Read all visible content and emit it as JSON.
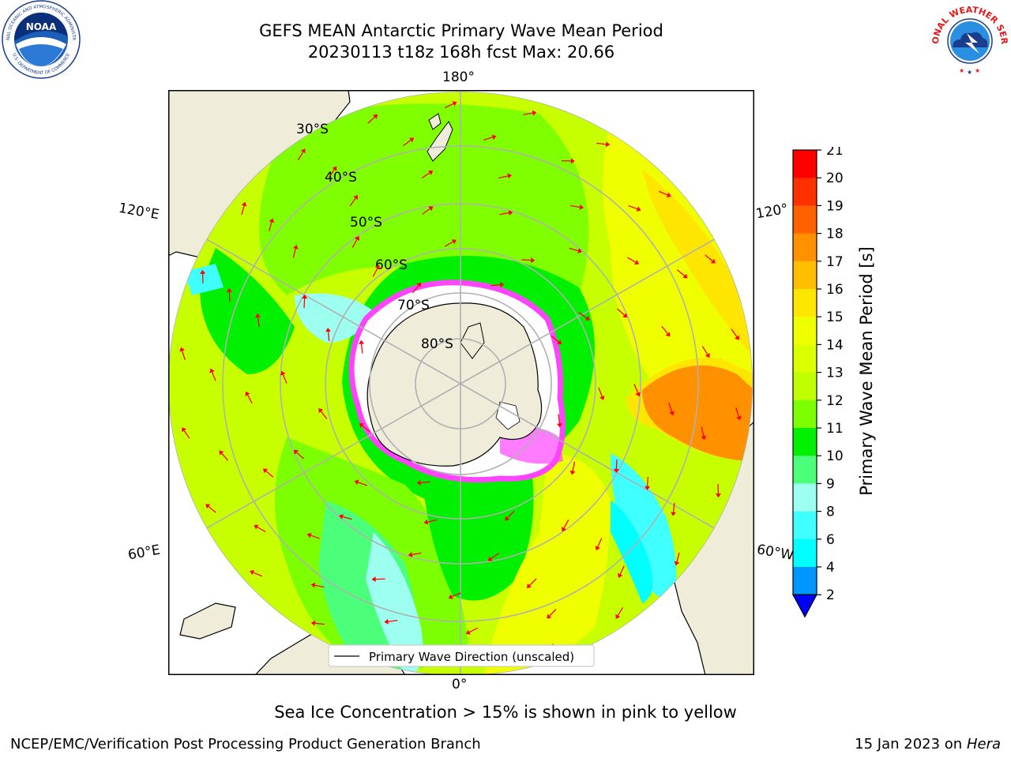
{
  "title": {
    "line1": "GEFS MEAN Antarctic Primary Wave Mean Period",
    "line2": "20230113 t18z 168h fcst   Max: 20.66"
  },
  "map": {
    "projection": "south-polar-stereographic",
    "lat_labels": [
      "30°S",
      "40°S",
      "50°S",
      "60°S",
      "70°S",
      "80°S"
    ],
    "lon_labels": {
      "top": "180°",
      "bottom": "0°",
      "left_upper": "120°E",
      "left_lower": "60°E",
      "right_upper": "120°",
      "right_lower": "60°W"
    },
    "legend_text": "Primary Wave Direction (unscaled)",
    "colors": {
      "land": "#efedda",
      "arrow": "#ff0000",
      "grid": "#b0b0b0",
      "sea_ice": "#ff44ff"
    }
  },
  "colorbar": {
    "label": "Primary Wave Mean Period [s]",
    "ticks": [
      "21",
      "20",
      "19",
      "18",
      "17",
      "16",
      "15",
      "14",
      "13",
      "12",
      "11",
      "10",
      "9",
      "8",
      "6",
      "4",
      "2"
    ],
    "colors": [
      "#ff0000",
      "#ff3000",
      "#ff6000",
      "#ff9000",
      "#ffbf00",
      "#ffe600",
      "#f0ff00",
      "#dcff00",
      "#c0ff00",
      "#7cff00",
      "#00f000",
      "#4cff7a",
      "#9cfff0",
      "#40ffff",
      "#00ffff",
      "#0096ff",
      "#0000ff"
    ],
    "extend_color": "#0000ff"
  },
  "caption": "Sea Ice Concentration > 15% is shown in pink to yellow",
  "footer": {
    "left": "NCEP/EMC/Verification Post Processing Product Generation Branch",
    "right_date": "15 Jan 2023 on",
    "right_host": "Hera"
  },
  "logos": {
    "noaa_text": "NOAA",
    "noaa_ring": "NATIONAL OCEANIC AND ATMOSPHERIC ADMINISTRATION",
    "noaa_ring_bottom": "U.S. DEPARTMENT OF COMMERCE",
    "nws_ring": "NATIONAL WEATHER SERVICE"
  }
}
